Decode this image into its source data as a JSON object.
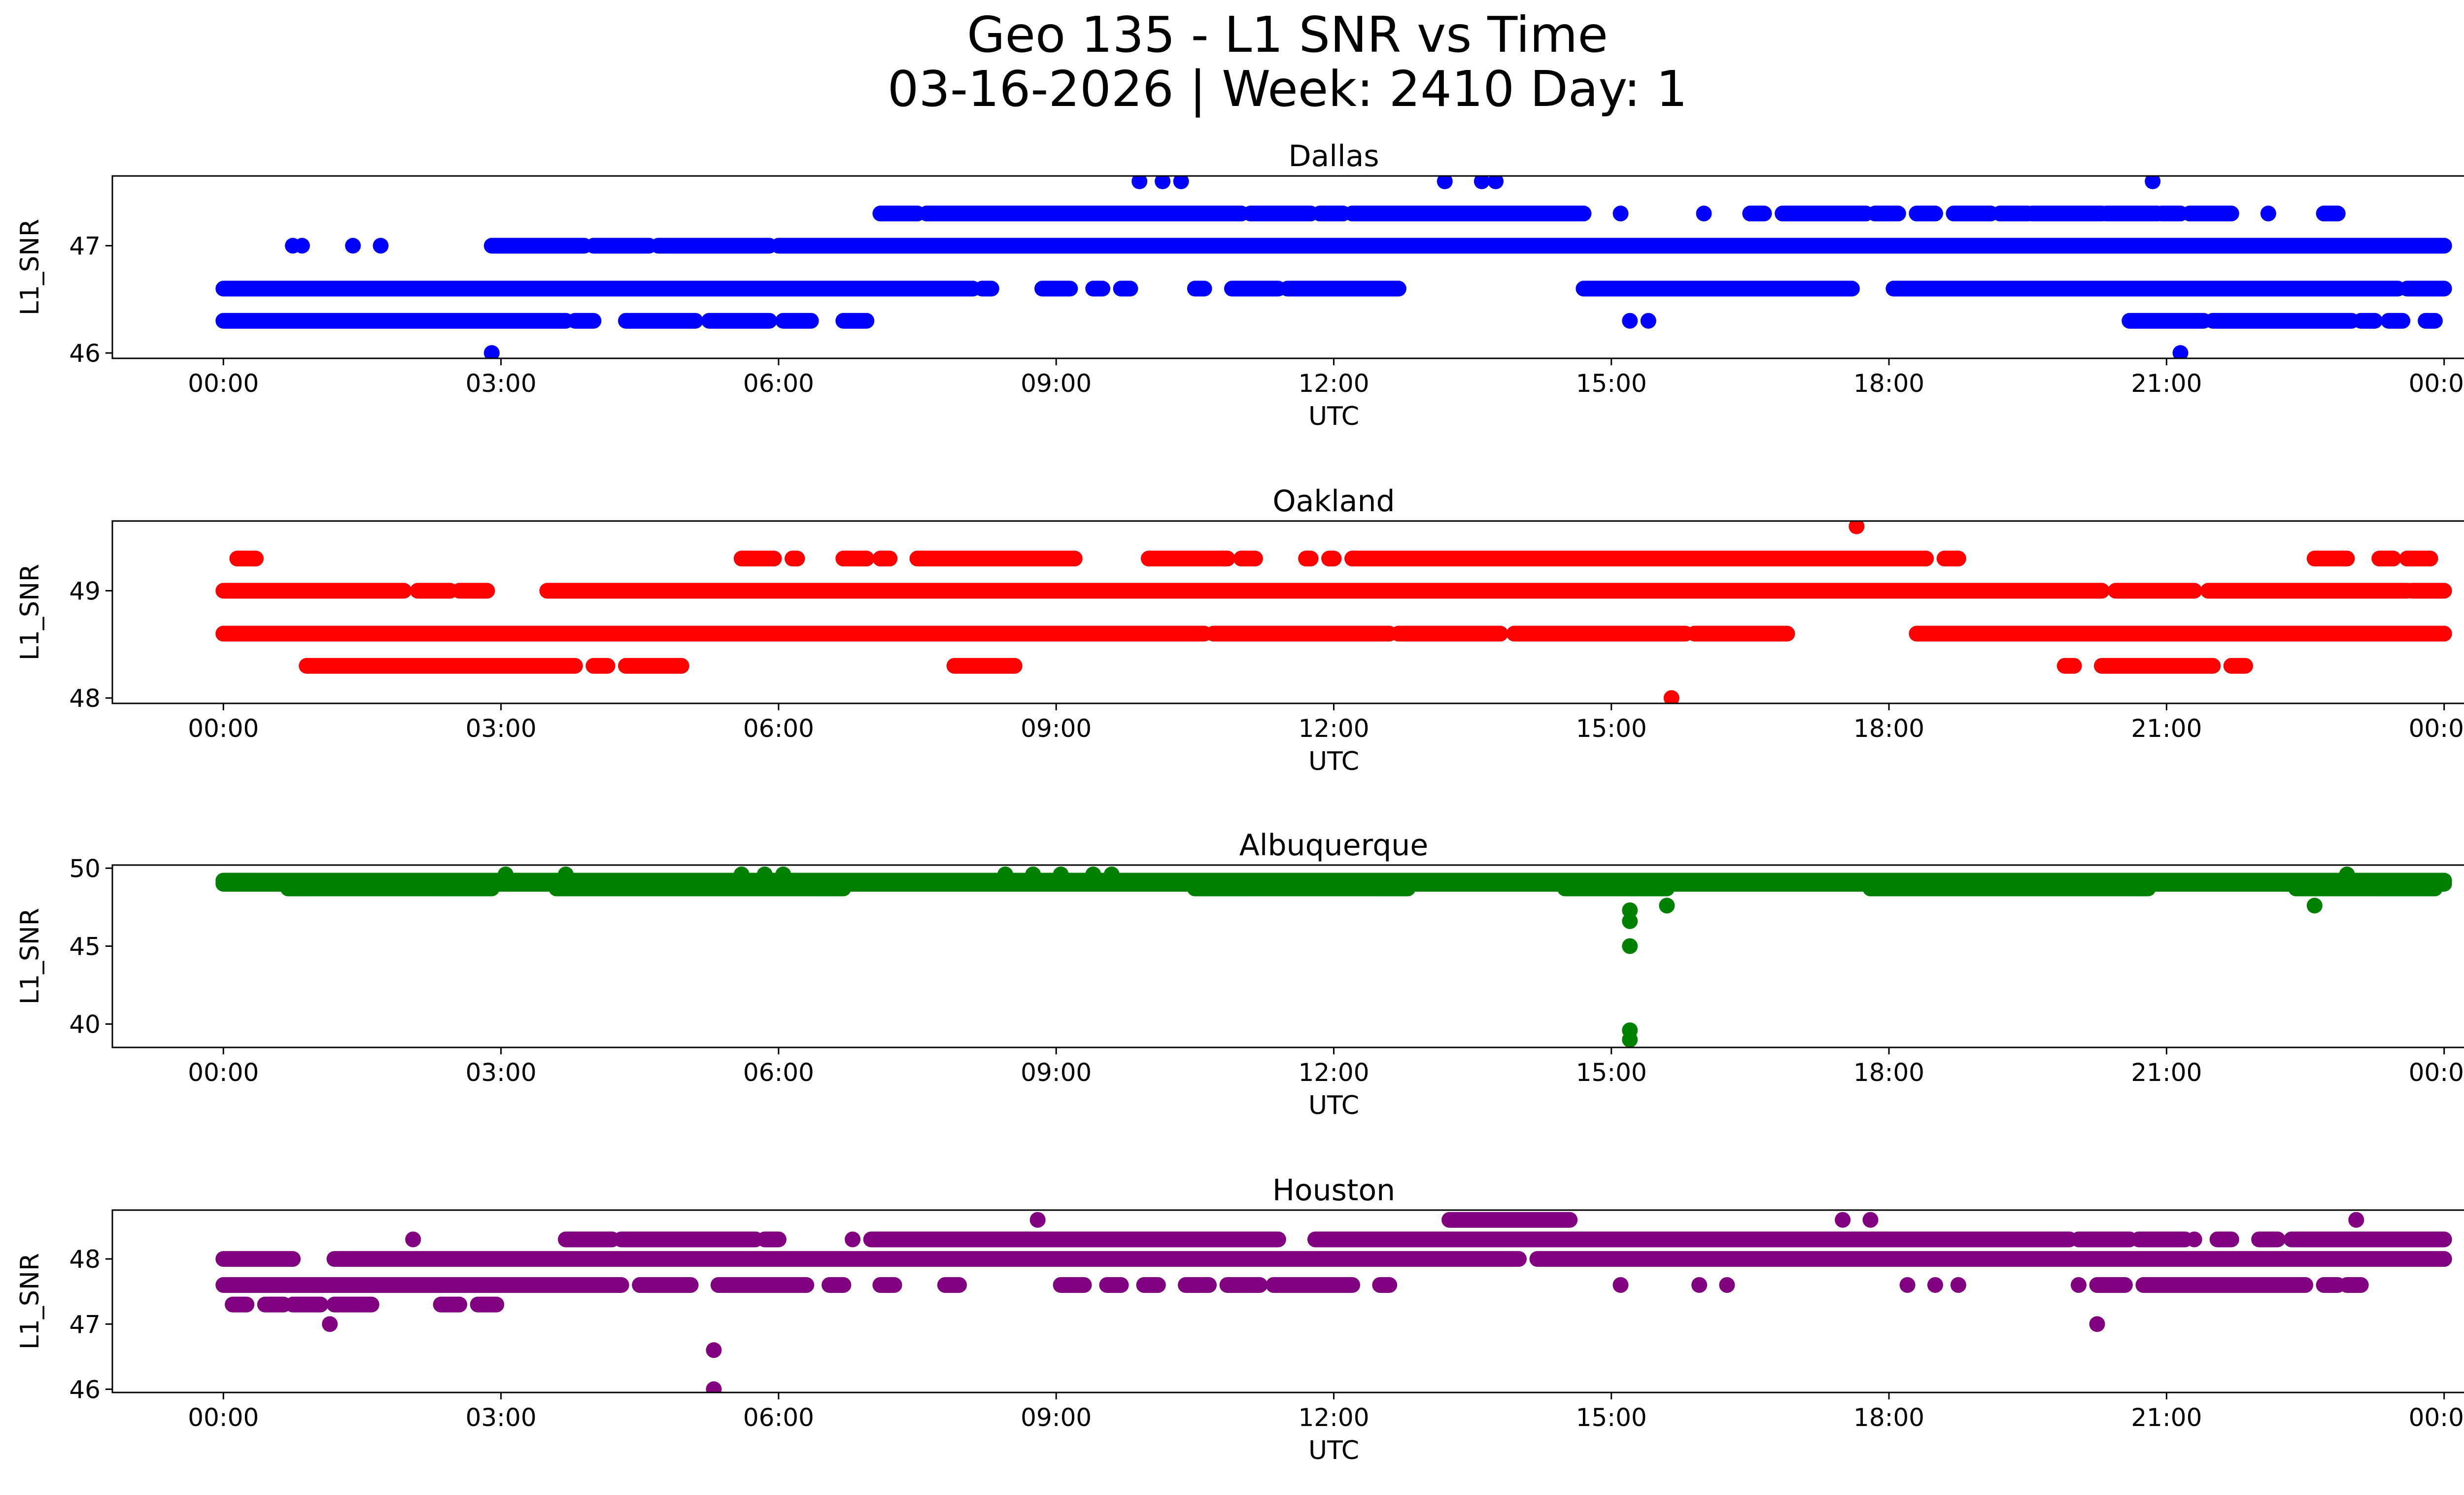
{
  "title": {
    "line1": "Geo 135 - L1 SNR vs Time",
    "line2": "03-16-2026 | Week: 2410 Day: 1"
  },
  "chart_data": [
    {
      "type": "scatter",
      "title": "Dallas",
      "xlabel": "UTC",
      "ylabel": "L1_SNR",
      "color": "#0000ff",
      "xlim_hours": [
        -1.2,
        25.2
      ],
      "ylim": [
        45.95,
        47.65
      ],
      "x_ticks": [
        0,
        3,
        6,
        9,
        12,
        15,
        18,
        21,
        24
      ],
      "x_tick_labels": [
        "00:00",
        "03:00",
        "06:00",
        "09:00",
        "12:00",
        "15:00",
        "18:00",
        "21:00",
        "00:00"
      ],
      "y_ticks": [
        46,
        47
      ],
      "y_tick_labels": [
        "46",
        "47"
      ],
      "bands": [
        {
          "y": 46.3,
          "segments": [
            [
              0,
              3.7
            ],
            [
              3.8,
              4.0
            ],
            [
              4.35,
              5.1
            ],
            [
              5.25,
              5.9
            ],
            [
              6.05,
              6.35
            ],
            [
              6.7,
              6.95
            ],
            [
              20.6,
              21.4
            ],
            [
              21.5,
              23.0
            ],
            [
              23.1,
              23.25
            ],
            [
              23.4,
              23.55
            ],
            [
              23.8,
              23.9
            ]
          ]
        },
        {
          "y": 46.6,
          "segments": [
            [
              0,
              8.1
            ],
            [
              8.2,
              8.3
            ],
            [
              8.85,
              9.15
            ],
            [
              9.4,
              9.5
            ],
            [
              9.7,
              9.8
            ],
            [
              10.5,
              10.6
            ],
            [
              10.9,
              11.4
            ],
            [
              11.5,
              12.7
            ],
            [
              14.7,
              17.6
            ],
            [
              18.05,
              23.5
            ],
            [
              23.6,
              24.0
            ]
          ]
        },
        {
          "y": 47.0,
          "segments": [
            [
              2.9,
              3.9
            ],
            [
              4.0,
              4.6
            ],
            [
              4.7,
              5.9
            ],
            [
              6.0,
              24.0
            ]
          ]
        },
        {
          "y": 47.3,
          "segments": [
            [
              7.1,
              7.5
            ],
            [
              7.6,
              11.0
            ],
            [
              11.1,
              11.75
            ],
            [
              11.85,
              12.1
            ],
            [
              12.2,
              14.7
            ],
            [
              16.5,
              16.65
            ],
            [
              16.85,
              17.75
            ],
            [
              17.85,
              18.1
            ],
            [
              18.3,
              18.5
            ],
            [
              18.7,
              19.1
            ],
            [
              19.2,
              19.5
            ],
            [
              19.55,
              20.3
            ],
            [
              20.35,
              20.9
            ],
            [
              20.95,
              21.15
            ],
            [
              21.25,
              21.7
            ],
            [
              22.7,
              22.85
            ]
          ]
        }
      ],
      "points": [
        [
          0.75,
          47.0
        ],
        [
          0.85,
          47.0
        ],
        [
          1.4,
          47.0
        ],
        [
          1.7,
          47.0
        ],
        [
          2.9,
          46.0
        ],
        [
          15.1,
          47.3
        ],
        [
          15.2,
          46.3
        ],
        [
          15.4,
          46.3
        ],
        [
          16.0,
          47.3
        ],
        [
          9.9,
          47.6
        ],
        [
          10.15,
          47.6
        ],
        [
          10.35,
          47.6
        ],
        [
          13.2,
          47.6
        ],
        [
          13.6,
          47.6
        ],
        [
          13.75,
          47.6
        ],
        [
          20.85,
          47.6
        ],
        [
          21.15,
          46.0
        ],
        [
          22.1,
          47.3
        ],
        [
          24.0,
          47.0
        ]
      ]
    },
    {
      "type": "scatter",
      "title": "Oakland",
      "xlabel": "UTC",
      "ylabel": "L1_SNR",
      "color": "#ff0000",
      "xlim_hours": [
        -1.2,
        25.2
      ],
      "ylim": [
        47.95,
        49.65
      ],
      "x_ticks": [
        0,
        3,
        6,
        9,
        12,
        15,
        18,
        21,
        24
      ],
      "x_tick_labels": [
        "00:00",
        "03:00",
        "06:00",
        "09:00",
        "12:00",
        "15:00",
        "18:00",
        "21:00",
        "00:00"
      ],
      "y_ticks": [
        48,
        49
      ],
      "y_tick_labels": [
        "48",
        "49"
      ],
      "bands": [
        {
          "y": 48.3,
          "segments": [
            [
              0.9,
              3.8
            ],
            [
              4.0,
              4.15
            ],
            [
              4.35,
              4.95
            ],
            [
              7.9,
              8.55
            ],
            [
              19.9,
              20.0
            ],
            [
              20.3,
              21.5
            ],
            [
              21.7,
              21.85
            ]
          ]
        },
        {
          "y": 48.6,
          "segments": [
            [
              0,
              10.6
            ],
            [
              10.7,
              12.6
            ],
            [
              12.7,
              13.8
            ],
            [
              13.95,
              15.8
            ],
            [
              15.9,
              16.9
            ],
            [
              18.3,
              24.0
            ]
          ]
        },
        {
          "y": 49.0,
          "segments": [
            [
              0,
              1.95
            ],
            [
              2.1,
              2.45
            ],
            [
              2.55,
              2.85
            ],
            [
              3.5,
              20.3
            ],
            [
              20.45,
              21.3
            ],
            [
              21.45,
              23.6
            ],
            [
              23.65,
              24.0
            ]
          ]
        },
        {
          "y": 49.3,
          "segments": [
            [
              0.15,
              0.35
            ],
            [
              5.6,
              5.95
            ],
            [
              6.15,
              6.2
            ],
            [
              6.7,
              6.95
            ],
            [
              7.1,
              7.2
            ],
            [
              7.5,
              9.2
            ],
            [
              10.0,
              10.85
            ],
            [
              11.0,
              11.15
            ],
            [
              11.7,
              11.75
            ],
            [
              11.95,
              12.0
            ],
            [
              12.2,
              18.4
            ],
            [
              18.6,
              18.75
            ],
            [
              22.6,
              22.95
            ],
            [
              23.3,
              23.45
            ],
            [
              23.6,
              23.85
            ]
          ]
        }
      ],
      "points": [
        [
          15.65,
          48.0
        ],
        [
          17.65,
          49.6
        ],
        [
          0,
          48.6
        ],
        [
          24.0,
          48.6
        ]
      ]
    },
    {
      "type": "scatter",
      "title": "Albuquerque",
      "xlabel": "UTC",
      "ylabel": "L1_SNR",
      "color": "#008000",
      "xlim_hours": [
        -1.2,
        25.2
      ],
      "ylim": [
        38.5,
        50.2
      ],
      "x_ticks": [
        0,
        3,
        6,
        9,
        12,
        15,
        18,
        21,
        24
      ],
      "x_tick_labels": [
        "00:00",
        "03:00",
        "06:00",
        "09:00",
        "12:00",
        "15:00",
        "18:00",
        "21:00",
        "00:00"
      ],
      "y_ticks": [
        40,
        45,
        50
      ],
      "y_tick_labels": [
        "40",
        "45",
        "50"
      ],
      "bands": [
        {
          "y": 49.0,
          "segments": [
            [
              0,
              24.0
            ]
          ]
        },
        {
          "y": 49.2,
          "segments": [
            [
              0,
              24.0
            ]
          ]
        },
        {
          "y": 48.7,
          "segments": [
            [
              0.7,
              2.9
            ],
            [
              3.6,
              6.7
            ],
            [
              10.5,
              12.8
            ],
            [
              14.5,
              15.6
            ],
            [
              17.8,
              20.8
            ],
            [
              22.4,
              23.9
            ]
          ]
        }
      ],
      "points": [
        [
          15.2,
          47.3
        ],
        [
          15.2,
          46.6
        ],
        [
          15.2,
          45.0
        ],
        [
          15.2,
          39.6
        ],
        [
          15.2,
          39.0
        ],
        [
          15.6,
          47.6
        ],
        [
          22.6,
          47.6
        ],
        [
          3.05,
          49.6
        ],
        [
          3.7,
          49.6
        ],
        [
          5.6,
          49.6
        ],
        [
          5.85,
          49.6
        ],
        [
          6.05,
          49.6
        ],
        [
          8.45,
          49.6
        ],
        [
          8.75,
          49.6
        ],
        [
          9.05,
          49.6
        ],
        [
          9.4,
          49.6
        ],
        [
          9.6,
          49.6
        ],
        [
          22.95,
          49.6
        ]
      ]
    },
    {
      "type": "scatter",
      "title": "Houston",
      "xlabel": "UTC",
      "ylabel": "L1_SNR",
      "color": "#800080",
      "xlim_hours": [
        -1.2,
        25.2
      ],
      "ylim": [
        45.95,
        48.75
      ],
      "x_ticks": [
        0,
        3,
        6,
        9,
        12,
        15,
        18,
        21,
        24
      ],
      "x_tick_labels": [
        "00:00",
        "03:00",
        "06:00",
        "09:00",
        "12:00",
        "15:00",
        "18:00",
        "21:00",
        "00:00"
      ],
      "y_ticks": [
        46,
        47,
        48
      ],
      "y_tick_labels": [
        "46",
        "47",
        "48"
      ],
      "bands": [
        {
          "y": 47.3,
          "segments": [
            [
              0.1,
              0.25
            ],
            [
              0.45,
              0.65
            ],
            [
              0.75,
              1.05
            ],
            [
              1.2,
              1.6
            ],
            [
              2.35,
              2.55
            ],
            [
              2.75,
              2.95
            ]
          ]
        },
        {
          "y": 47.6,
          "segments": [
            [
              0,
              4.3
            ],
            [
              4.5,
              5.05
            ],
            [
              5.35,
              6.3
            ],
            [
              6.55,
              6.7
            ],
            [
              7.1,
              7.25
            ],
            [
              7.8,
              7.95
            ],
            [
              9.05,
              9.3
            ],
            [
              9.55,
              9.7
            ],
            [
              9.95,
              10.1
            ],
            [
              10.4,
              10.65
            ],
            [
              10.85,
              11.2
            ],
            [
              11.35,
              12.2
            ],
            [
              12.5,
              12.6
            ],
            [
              20.25,
              20.55
            ],
            [
              20.75,
              22.5
            ],
            [
              22.7,
              22.85
            ],
            [
              22.95,
              23.1
            ]
          ]
        },
        {
          "y": 48.0,
          "segments": [
            [
              0,
              0.75
            ],
            [
              1.2,
              14.0
            ],
            [
              14.2,
              24.0
            ]
          ]
        },
        {
          "y": 48.3,
          "segments": [
            [
              3.7,
              4.2
            ],
            [
              4.3,
              5.75
            ],
            [
              5.85,
              6.0
            ],
            [
              7.0,
              11.4
            ],
            [
              11.8,
              19.95
            ],
            [
              20.05,
              20.6
            ],
            [
              20.7,
              21.2
            ],
            [
              21.55,
              21.7
            ],
            [
              22.0,
              22.2
            ],
            [
              22.35,
              24.0
            ]
          ]
        },
        {
          "y": 48.6,
          "segments": [
            [
              13.25,
              14.55
            ]
          ]
        }
      ],
      "points": [
        [
          1.15,
          47.0
        ],
        [
          2.05,
          48.3
        ],
        [
          5.3,
          46.6
        ],
        [
          5.3,
          46.0
        ],
        [
          6.8,
          48.3
        ],
        [
          8.8,
          48.6
        ],
        [
          15.1,
          47.6
        ],
        [
          15.95,
          47.6
        ],
        [
          16.25,
          47.6
        ],
        [
          17.5,
          48.6
        ],
        [
          17.8,
          48.6
        ],
        [
          18.2,
          47.6
        ],
        [
          18.5,
          47.6
        ],
        [
          18.75,
          47.6
        ],
        [
          20.05,
          47.6
        ],
        [
          20.25,
          47.0
        ],
        [
          21.3,
          48.3
        ],
        [
          23.05,
          48.6
        ],
        [
          24.0,
          48.0
        ]
      ]
    }
  ]
}
